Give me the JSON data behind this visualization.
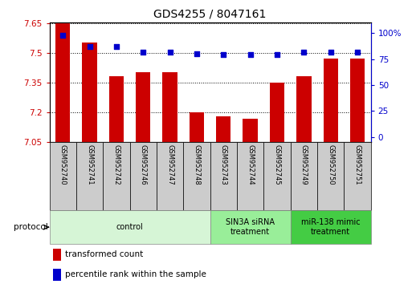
{
  "title": "GDS4255 / 8047161",
  "samples": [
    "GSM952740",
    "GSM952741",
    "GSM952742",
    "GSM952746",
    "GSM952747",
    "GSM952748",
    "GSM952743",
    "GSM952744",
    "GSM952745",
    "GSM952749",
    "GSM952750",
    "GSM952751"
  ],
  "transformed_count": [
    7.65,
    7.55,
    7.38,
    7.4,
    7.4,
    7.2,
    7.18,
    7.165,
    7.35,
    7.38,
    7.47,
    7.47
  ],
  "percentile_rank": [
    98,
    87,
    87,
    82,
    82,
    80,
    79,
    79,
    79,
    82,
    82,
    82
  ],
  "bar_color": "#cc0000",
  "dot_color": "#0000cc",
  "y_min": 7.05,
  "y_max": 7.65,
  "y_ticks": [
    7.05,
    7.2,
    7.35,
    7.5,
    7.65
  ],
  "y2_ticks": [
    0,
    25,
    50,
    75,
    100
  ],
  "y2_labels": [
    "0",
    "25",
    "50",
    "75",
    "100%"
  ],
  "groups": [
    {
      "label": "control",
      "start": 0,
      "end": 6,
      "color": "#d6f5d6",
      "edge_color": "#aaaaaa"
    },
    {
      "label": "SIN3A siRNA\ntreatment",
      "start": 6,
      "end": 9,
      "color": "#99ee99",
      "edge_color": "#aaaaaa"
    },
    {
      "label": "miR-138 mimic\ntreatment",
      "start": 9,
      "end": 12,
      "color": "#44cc44",
      "edge_color": "#aaaaaa"
    }
  ],
  "legend_items": [
    {
      "label": "transformed count",
      "color": "#cc0000"
    },
    {
      "label": "percentile rank within the sample",
      "color": "#0000cc"
    }
  ],
  "protocol_label": "protocol"
}
